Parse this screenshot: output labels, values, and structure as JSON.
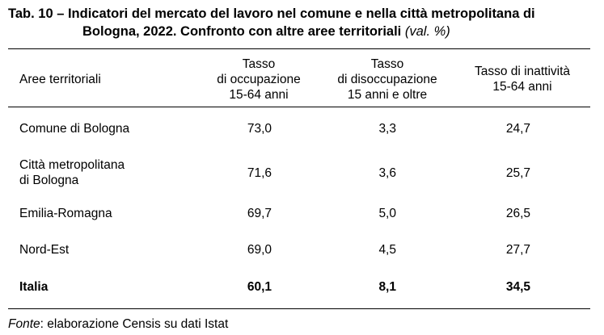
{
  "title": {
    "number": "Tab. 10 – Indicatori del mercato del lavoro nel comune e nella città metropolitana di",
    "line2": "Bologna, 2022. Confronto con altre aree territoriali",
    "note": "(val. %)"
  },
  "table": {
    "columns": [
      {
        "line1": "Aree territoriali"
      },
      {
        "line1": "Tasso",
        "line2": "di occupazione",
        "line3": "15-64 anni"
      },
      {
        "line1": "Tasso",
        "line2": "di disoccupazione",
        "line3": "15 anni e oltre"
      },
      {
        "line1": "Tasso di inattività",
        "line2": "15-64 anni"
      }
    ],
    "rows": [
      {
        "label_line1": "Comune di Bologna",
        "label_line2": "",
        "occupazione": "73,0",
        "disoccupazione": "3,3",
        "inattivita": "24,7",
        "bold": false
      },
      {
        "label_line1": "Città metropolitana",
        "label_line2": "di Bologna",
        "occupazione": "71,6",
        "disoccupazione": "3,6",
        "inattivita": "25,7",
        "bold": false
      },
      {
        "label_line1": "Emilia-Romagna",
        "label_line2": "",
        "occupazione": "69,7",
        "disoccupazione": "5,0",
        "inattivita": "26,5",
        "bold": false
      },
      {
        "label_line1": "Nord-Est",
        "label_line2": "",
        "occupazione": "69,0",
        "disoccupazione": "4,5",
        "inattivita": "27,7",
        "bold": false
      },
      {
        "label_line1": "Italia",
        "label_line2": "",
        "occupazione": "60,1",
        "disoccupazione": "8,1",
        "inattivita": "34,5",
        "bold": true
      }
    ]
  },
  "source": {
    "prefix": "Fonte",
    "text": ": elaborazione Censis su dati Istat"
  }
}
